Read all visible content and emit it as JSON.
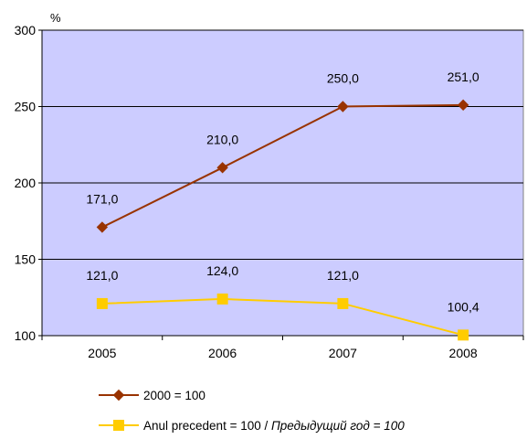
{
  "chart_data": {
    "type": "line",
    "ylabel": "%",
    "categories": [
      "2005",
      "2006",
      "2007",
      "2008"
    ],
    "ylim": [
      100,
      300
    ],
    "yticks": [
      100,
      150,
      200,
      250,
      300
    ],
    "grid": true,
    "plot_background": "#CCCCFF",
    "legend_position": "bottom",
    "series": [
      {
        "name": "2000 = 100",
        "values": [
          171.0,
          210.0,
          250.0,
          251.0
        ],
        "labels": [
          "171,0",
          "210,0",
          "250,0",
          "251,0"
        ],
        "color": "#993300",
        "marker": "diamond"
      },
      {
        "name": "Anul precedent = 100 / ",
        "name_italic": "Предыдущий год = 100",
        "values": [
          121.0,
          124.0,
          121.0,
          100.4
        ],
        "labels": [
          "121,0",
          "124,0",
          "121,0",
          "100,4"
        ],
        "color": "#FFCC00",
        "marker": "square"
      }
    ]
  }
}
